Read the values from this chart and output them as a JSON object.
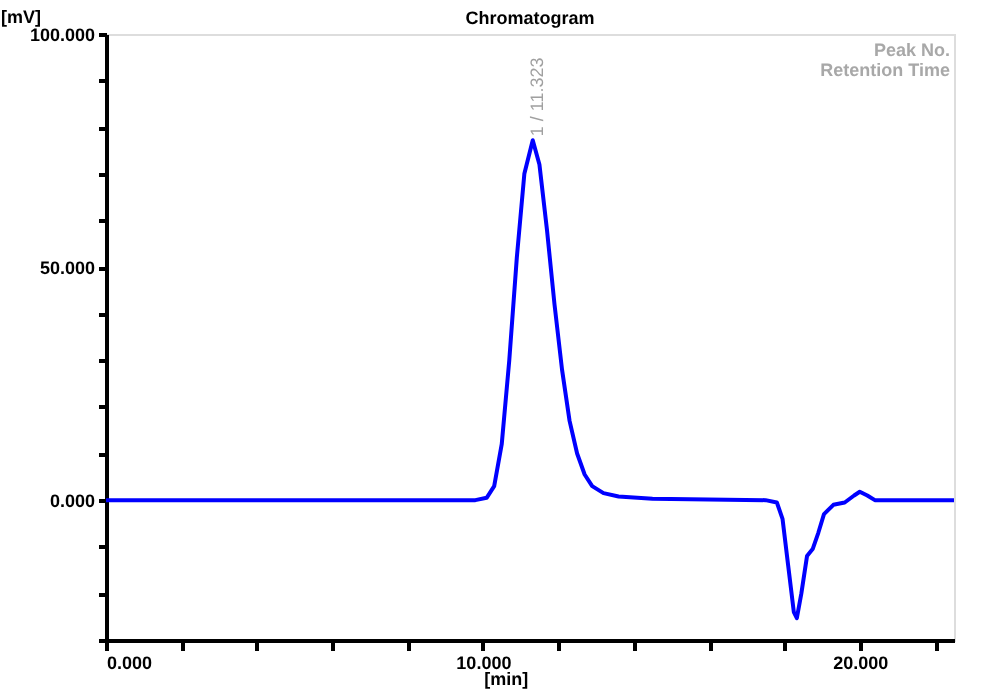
{
  "chart_data": {
    "type": "line",
    "title": "Chromatogram",
    "xlabel": "[min]",
    "ylabel": "[mV]",
    "x": [
      0,
      9.8,
      10.1,
      10.3,
      10.5,
      10.7,
      10.9,
      11.1,
      11.323,
      11.5,
      11.7,
      11.9,
      12.1,
      12.3,
      12.5,
      12.7,
      12.9,
      13.2,
      13.6,
      14.5,
      17.5,
      17.8,
      17.95,
      18.1,
      18.25,
      18.33,
      18.45,
      18.6,
      18.75,
      18.9,
      19.05,
      19.3,
      19.6,
      19.85,
      20.0,
      20.2,
      20.4,
      22.5
    ],
    "series": [
      {
        "color": "#0000ff",
        "values": [
          0,
          0,
          0.5,
          3,
          12,
          30,
          52,
          70,
          77.2,
          72,
          58,
          42,
          28,
          17,
          10,
          5.5,
          3,
          1.5,
          0.8,
          0.3,
          0,
          -0.5,
          -4,
          -14,
          -24,
          -25.3,
          -20,
          -12,
          -10.5,
          -7,
          -3,
          -1,
          -0.5,
          1,
          1.8,
          1,
          0,
          0
        ]
      }
    ],
    "xlim": [
      0,
      22.5
    ],
    "xticks": [
      {
        "value": 0,
        "label": "0.000"
      },
      {
        "value": 2,
        "label": null
      },
      {
        "value": 4,
        "label": null
      },
      {
        "value": 6,
        "label": null
      },
      {
        "value": 8,
        "label": null
      },
      {
        "value": 10,
        "label": "10.000"
      },
      {
        "value": 12,
        "label": null
      },
      {
        "value": 14,
        "label": null
      },
      {
        "value": 16,
        "label": null
      },
      {
        "value": 18,
        "label": null
      },
      {
        "value": 20,
        "label": "20.000"
      },
      {
        "value": 22,
        "label": null
      }
    ],
    "ylim": [
      -30,
      100
    ],
    "yticks": [
      {
        "value": -30,
        "label": null
      },
      {
        "value": -20,
        "label": null
      },
      {
        "value": -10,
        "label": null
      },
      {
        "value": 0,
        "label": "0.000"
      },
      {
        "value": 10,
        "label": null
      },
      {
        "value": 20,
        "label": null
      },
      {
        "value": 30,
        "label": null
      },
      {
        "value": 40,
        "label": null
      },
      {
        "value": 50,
        "label": "50.000"
      },
      {
        "value": 60,
        "label": null
      },
      {
        "value": 70,
        "label": null
      },
      {
        "value": 80,
        "label": null
      },
      {
        "value": 90,
        "label": null
      },
      {
        "value": 100,
        "label": "100.000"
      }
    ],
    "grid": false,
    "legend": false,
    "marker": "none",
    "line_style": "solid",
    "annotations": [
      {
        "text": "1 / 11.323",
        "x": 11.323,
        "y": 77.2
      },
      "Peak No.",
      "Retention Time"
    ]
  }
}
